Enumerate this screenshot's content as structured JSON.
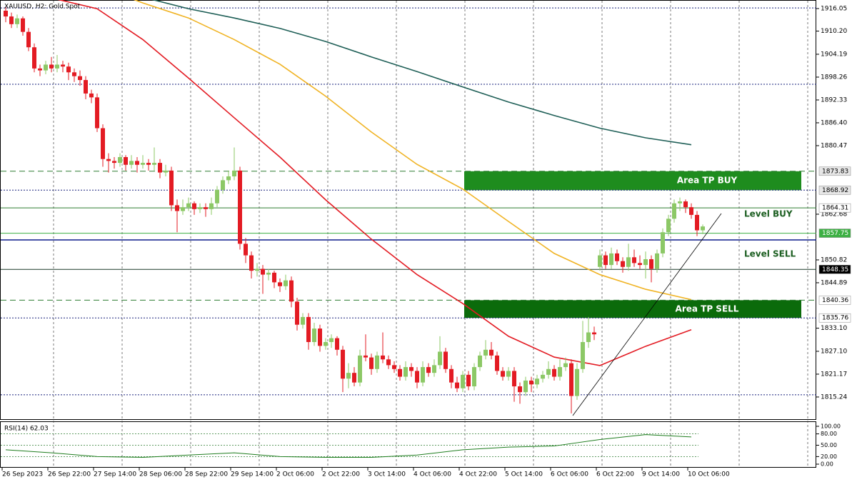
{
  "chart_data": {
    "type": "candlestick",
    "title": "XAUUSD, H2:  Gold Spot",
    "x": [
      "26 Sep 2023",
      "26 Sep 22:00",
      "27 Sep 14:00",
      "28 Sep 06:00",
      "28 Sep 22:00",
      "29 Sep 14:00",
      "2 Oct 06:00",
      "2 Oct 22:00",
      "3 Oct 14:00",
      "4 Oct 06:00",
      "4 Oct 22:00",
      "5 Oct 14:00",
      "6 Oct 06:00",
      "6 Oct 22:00",
      "9 Oct 14:00",
      "10 Oct 06:00"
    ],
    "ylim": [
      1809.3,
      1918.27
    ],
    "yticks": [
      {
        "value": 1916.05,
        "label": "1916.05"
      },
      {
        "value": 1910.2,
        "label": "1910.20"
      },
      1904.19,
      1898.26,
      1892.33,
      {
        "value": 1886.4,
        "label": "1886.40"
      },
      1880.47,
      1862.68,
      1850.82,
      1844.89,
      {
        "value": 1833.1,
        "label": "1833.10"
      },
      {
        "value": 1827.1,
        "label": "1827.10"
      },
      1821.17,
      1815.24
    ],
    "up_color": "#8cc866",
    "down_color": "#e31b23",
    "candles": [
      [
        1915.5,
        1916.5,
        1912.5,
        1914.0
      ],
      [
        1914.0,
        1915.0,
        1911.0,
        1912.0
      ],
      [
        1912.0,
        1914.5,
        1911.0,
        1913.5
      ],
      [
        1913.5,
        1914.0,
        1909.0,
        1910.0
      ],
      [
        1910.0,
        1911.0,
        1905.0,
        1906.0
      ],
      [
        1906.0,
        1907.0,
        1899.5,
        1900.5
      ],
      [
        1900.5,
        1901.5,
        1898.5,
        1900.0
      ],
      [
        1900.0,
        1902.5,
        1899.0,
        1901.5
      ],
      [
        1901.5,
        1903.5,
        1899.5,
        1900.5
      ],
      [
        1900.5,
        1904.0,
        1899.5,
        1901.5
      ],
      [
        1901.5,
        1902.5,
        1899.5,
        1901.0
      ],
      [
        1901.0,
        1902.0,
        1897.5,
        1899.5
      ],
      [
        1899.5,
        1900.5,
        1897.0,
        1898.5
      ],
      [
        1898.5,
        1900.0,
        1896.0,
        1897.5
      ],
      [
        1897.5,
        1898.5,
        1892.5,
        1894.0
      ],
      [
        1894.0,
        1895.0,
        1891.5,
        1893.0
      ],
      [
        1893.0,
        1894.0,
        1884.0,
        1885.0
      ],
      [
        1885.0,
        1886.0,
        1875.0,
        1877.0
      ],
      [
        1877.0,
        1878.5,
        1873.5,
        1876.5
      ],
      [
        1876.5,
        1877.5,
        1874.5,
        1876.0
      ],
      [
        1876.0,
        1878.5,
        1875.0,
        1877.5
      ],
      [
        1877.5,
        1878.0,
        1874.0,
        1875.5
      ],
      [
        1875.5,
        1878.0,
        1874.5,
        1876.5
      ],
      [
        1876.5,
        1877.5,
        1873.5,
        1875.5
      ],
      [
        1875.5,
        1878.0,
        1874.5,
        1876.0
      ],
      [
        1876.0,
        1877.0,
        1874.0,
        1875.5
      ],
      [
        1875.5,
        1880.0,
        1874.0,
        1876.0
      ],
      [
        1876.0,
        1877.0,
        1872.0,
        1873.5
      ],
      [
        1873.5,
        1875.5,
        1872.5,
        1874.0
      ],
      [
        1874.0,
        1875.0,
        1863.5,
        1865.0
      ],
      [
        1865.0,
        1866.5,
        1858.0,
        1863.5
      ],
      [
        1863.5,
        1866.5,
        1862.5,
        1864.5
      ],
      [
        1864.5,
        1867.0,
        1863.5,
        1865.5
      ],
      [
        1865.5,
        1866.0,
        1862.5,
        1864.0
      ],
      [
        1864.0,
        1865.5,
        1863.0,
        1864.5
      ],
      [
        1864.5,
        1865.5,
        1862.0,
        1864.0
      ],
      [
        1864.0,
        1867.0,
        1862.5,
        1865.5
      ],
      [
        1865.5,
        1870.0,
        1864.5,
        1869.0
      ],
      [
        1869.0,
        1872.5,
        1868.0,
        1871.5
      ],
      [
        1871.5,
        1874.0,
        1870.5,
        1872.5
      ],
      [
        1872.5,
        1880.0,
        1871.5,
        1874.0
      ],
      [
        1874.0,
        1875.0,
        1853.5,
        1855.0
      ],
      [
        1855.0,
        1856.5,
        1850.0,
        1852.0
      ],
      [
        1852.0,
        1853.0,
        1846.0,
        1848.0
      ],
      [
        1848.0,
        1850.0,
        1846.5,
        1848.5
      ],
      [
        1848.5,
        1849.5,
        1842.0,
        1847.0
      ],
      [
        1847.0,
        1848.5,
        1845.5,
        1847.5
      ],
      [
        1847.5,
        1848.0,
        1843.5,
        1845.0
      ],
      [
        1845.0,
        1846.0,
        1842.5,
        1844.0
      ],
      [
        1844.0,
        1847.0,
        1843.0,
        1845.5
      ],
      [
        1845.5,
        1846.5,
        1838.5,
        1840.0
      ],
      [
        1840.0,
        1841.0,
        1832.5,
        1834.0
      ],
      [
        1834.0,
        1837.0,
        1833.0,
        1836.0
      ],
      [
        1836.0,
        1837.0,
        1827.5,
        1829.5
      ],
      [
        1829.5,
        1834.5,
        1828.5,
        1833.0
      ],
      [
        1833.0,
        1834.0,
        1827.0,
        1828.5
      ],
      [
        1828.5,
        1830.5,
        1827.5,
        1829.5
      ],
      [
        1829.5,
        1831.5,
        1828.0,
        1830.5
      ],
      [
        1830.5,
        1831.0,
        1826.0,
        1827.5
      ],
      [
        1827.5,
        1828.5,
        1816.5,
        1820.0
      ],
      [
        1820.0,
        1824.0,
        1817.5,
        1821.5
      ],
      [
        1821.5,
        1823.0,
        1818.0,
        1819.0
      ],
      [
        1819.0,
        1827.5,
        1818.0,
        1826.0
      ],
      [
        1826.0,
        1831.5,
        1824.5,
        1825.5
      ],
      [
        1825.5,
        1826.5,
        1821.0,
        1822.5
      ],
      [
        1822.5,
        1827.0,
        1821.5,
        1826.0
      ],
      [
        1826.0,
        1832.0,
        1824.0,
        1825.0
      ],
      [
        1825.0,
        1826.0,
        1822.5,
        1823.5
      ],
      [
        1823.5,
        1824.5,
        1821.5,
        1822.5
      ],
      [
        1822.5,
        1823.5,
        1819.5,
        1820.5
      ],
      [
        1820.5,
        1824.5,
        1819.5,
        1823.0
      ],
      [
        1823.0,
        1824.0,
        1820.5,
        1822.0
      ],
      [
        1822.0,
        1823.0,
        1817.5,
        1819.0
      ],
      [
        1819.0,
        1824.5,
        1818.0,
        1823.0
      ],
      [
        1823.0,
        1824.0,
        1820.5,
        1821.5
      ],
      [
        1821.5,
        1825.0,
        1820.5,
        1823.5
      ],
      [
        1823.5,
        1831.0,
        1822.5,
        1827.0
      ],
      [
        1827.0,
        1828.0,
        1821.5,
        1822.5
      ],
      [
        1822.5,
        1823.5,
        1817.5,
        1819.0
      ],
      [
        1819.0,
        1820.5,
        1816.5,
        1817.5
      ],
      [
        1817.5,
        1822.0,
        1816.5,
        1821.0
      ],
      [
        1821.0,
        1822.0,
        1817.0,
        1818.0
      ],
      [
        1818.0,
        1824.0,
        1817.0,
        1823.0
      ],
      [
        1823.0,
        1827.0,
        1822.0,
        1826.0
      ],
      [
        1826.0,
        1830.0,
        1825.0,
        1827.5
      ],
      [
        1827.5,
        1829.5,
        1825.0,
        1826.0
      ],
      [
        1826.0,
        1827.0,
        1821.0,
        1822.0
      ],
      [
        1822.0,
        1823.0,
        1819.5,
        1820.5
      ],
      [
        1820.5,
        1823.0,
        1819.5,
        1822.0
      ],
      [
        1822.0,
        1823.0,
        1814.0,
        1818.0
      ],
      [
        1818.0,
        1819.0,
        1813.5,
        1816.5
      ],
      [
        1816.5,
        1820.5,
        1815.5,
        1819.5
      ],
      [
        1819.5,
        1820.5,
        1816.5,
        1818.5
      ],
      [
        1818.5,
        1821.0,
        1817.5,
        1820.0
      ],
      [
        1820.0,
        1822.0,
        1819.0,
        1821.0
      ],
      [
        1821.0,
        1824.5,
        1820.0,
        1822.5
      ],
      [
        1822.5,
        1823.5,
        1819.5,
        1820.5
      ],
      [
        1820.5,
        1825.0,
        1819.5,
        1823.0
      ],
      [
        1823.0,
        1825.5,
        1822.0,
        1824.0
      ],
      [
        1824.0,
        1825.0,
        1811.0,
        1815.5
      ],
      [
        1815.5,
        1824.0,
        1814.5,
        1822.5
      ],
      [
        1822.5,
        1835.0,
        1821.5,
        1829.5
      ],
      [
        1829.5,
        1836.0,
        1828.0,
        1832.0
      ],
      [
        1832.0,
        1833.5,
        1830.0,
        1831.5
      ],
      [
        1849.0,
        1853.5,
        1848.0,
        1852.0
      ],
      [
        1852.0,
        1853.0,
        1848.5,
        1849.5
      ],
      [
        1849.5,
        1854.0,
        1848.5,
        1852.5
      ],
      [
        1852.5,
        1853.5,
        1849.5,
        1850.5
      ],
      [
        1850.5,
        1851.5,
        1847.5,
        1849.0
      ],
      [
        1849.0,
        1855.0,
        1848.0,
        1851.5
      ],
      [
        1851.5,
        1853.5,
        1849.0,
        1850.0
      ],
      [
        1850.0,
        1852.0,
        1848.5,
        1849.5
      ],
      [
        1849.5,
        1853.0,
        1846.0,
        1851.0
      ],
      [
        1851.0,
        1852.0,
        1845.0,
        1848.5
      ],
      [
        1848.5,
        1853.5,
        1847.5,
        1852.5
      ],
      [
        1852.5,
        1859.0,
        1851.5,
        1858.0
      ],
      [
        1858.0,
        1862.5,
        1857.0,
        1861.5
      ],
      [
        1861.5,
        1866.5,
        1860.5,
        1865.5
      ],
      [
        1865.5,
        1867.0,
        1863.5,
        1866.0
      ],
      [
        1866.0,
        1866.5,
        1863.0,
        1864.5
      ],
      [
        1864.5,
        1865.5,
        1861.5,
        1862.5
      ],
      [
        1862.5,
        1863.5,
        1857.0,
        1858.5
      ],
      [
        1858.5,
        1860.0,
        1857.5,
        1859.5
      ]
    ],
    "moving_averages": [
      {
        "color": "#e31b23",
        "values": [
          1922.5,
          1918.8,
          1916.0,
          1908.0,
          1898.0,
          1887.7,
          1877.5,
          1866.4,
          1856.2,
          1847.0,
          1839.5,
          1831.0,
          1825.6,
          1823.4,
          1828.4,
          1832.7
        ]
      },
      {
        "color": "#f0b323",
        "values": [
          1930.0,
          1926.0,
          1922.0,
          1917.5,
          1913.6,
          1908.0,
          1901.6,
          1893.3,
          1884.0,
          1875.6,
          1869.2,
          1860.8,
          1852.5,
          1847.0,
          1843.2,
          1840.5
        ]
      },
      {
        "color": "#1f5f57",
        "values": [
          1932.0,
          1928.0,
          1924.0,
          1919.0,
          1916.0,
          1913.6,
          1910.9,
          1907.5,
          1903.5,
          1899.7,
          1895.7,
          1891.8,
          1888.3,
          1885.0,
          1882.5,
          1880.7
        ]
      }
    ],
    "levels": [
      {
        "price": 1916.2,
        "style": "dotted",
        "color": "#1a237e"
      },
      {
        "price": 1896.4,
        "style": "dotted",
        "color": "#1a237e"
      },
      {
        "price": 1873.83,
        "style": "dashed",
        "color": "#2e7d32",
        "tag_bg": "#e6e6e6",
        "tag_fg": "#000000"
      },
      {
        "price": 1868.92,
        "style": "dotted",
        "color": "#1a237e",
        "tag_bg": "#e6e6e6",
        "tag_fg": "#000000"
      },
      {
        "price": 1864.31,
        "style": "solid",
        "color": "#2e7d32",
        "tag_bg": "#ffffff",
        "tag_fg": "#000000"
      },
      {
        "price": 1857.75,
        "style": "solid",
        "color": "#3cb043",
        "tag_bg": "#3cb043",
        "tag_fg": "#ffffff"
      },
      {
        "price": 1856.0,
        "style": "solid",
        "color": "#0d1b8c"
      },
      {
        "price": 1848.35,
        "style": "solid",
        "color": "#1b3a2a",
        "tag_bg": "#000000",
        "tag_fg": "#ffffff"
      },
      {
        "price": 1840.36,
        "style": "dashed",
        "color": "#2e7d32",
        "tag_bg": "#ffffff",
        "tag_fg": "#000000"
      },
      {
        "price": 1835.76,
        "style": "dotted",
        "color": "#1a237e",
        "tag_bg": "#ffffff",
        "tag_fg": "#000000"
      },
      {
        "price": 1815.8,
        "style": "dotted",
        "color": "#1a237e"
      }
    ],
    "zones": [
      {
        "label": "Area TP BUY",
        "top": 1873.83,
        "bottom": 1868.92,
        "color": "#1e8c1e"
      },
      {
        "label": "Area TP SELL",
        "top": 1840.36,
        "bottom": 1835.76,
        "color": "#0b6b0b"
      }
    ],
    "annotations": [
      "Level BUY",
      "Level SELL"
    ],
    "rsi": {
      "title": "RSI(14) 62.03",
      "color": "#1e7d1e",
      "ylim": [
        0,
        100
      ],
      "yticks": [
        {
          "value": 100,
          "label": "100.00"
        },
        {
          "value": 80,
          "label": "80.00"
        },
        {
          "value": 50,
          "label": "50.00"
        },
        {
          "value": 20,
          "label": "20.00"
        },
        {
          "value": 0,
          "label": "0.00"
        }
      ],
      "grid": [
        80,
        50,
        20
      ],
      "values": [
        38,
        30,
        20,
        18,
        24,
        30,
        20,
        18,
        18,
        24,
        38,
        45,
        48,
        65,
        78,
        72
      ]
    }
  }
}
